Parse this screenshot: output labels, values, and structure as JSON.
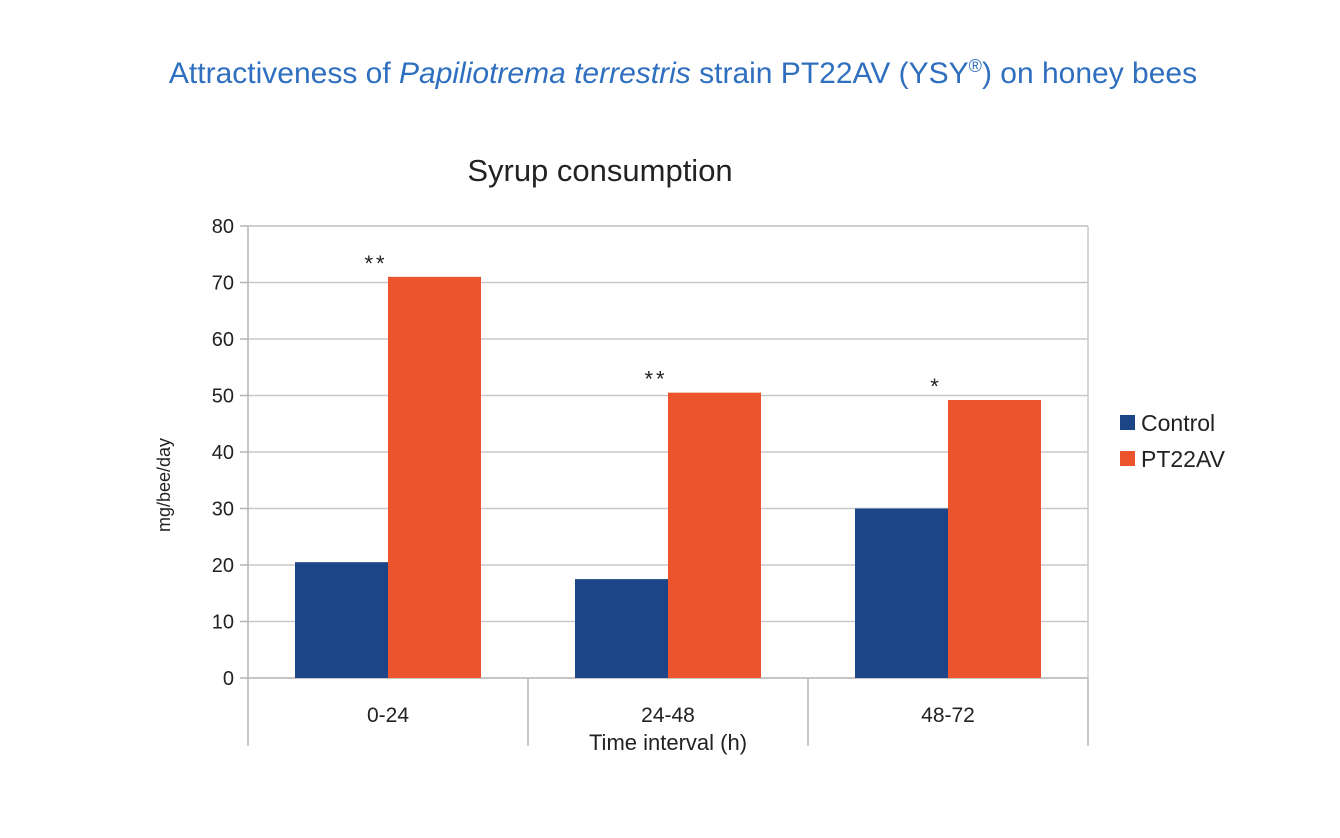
{
  "heading": {
    "prefix": "Attractiveness of ",
    "species": "Papiliotrema terrestris",
    "middle": " strain PT22AV (YSY",
    "registered": "®",
    "suffix": ") on honey bees"
  },
  "colors": {
    "heading": "#2f6fbf",
    "control": "#1c4587",
    "pt22av": "#eb542c",
    "grid": "#c8c8c8",
    "axis": "#b4b4b4",
    "text": "#222222"
  },
  "chart_data": {
    "type": "bar",
    "title": "Syrup consumption",
    "xlabel": "Time interval (h)",
    "ylabel": "mg/bee/day",
    "categories": [
      "0-24",
      "24-48",
      "48-72"
    ],
    "series": [
      {
        "name": "Control",
        "values": [
          20.5,
          17.5,
          30
        ]
      },
      {
        "name": "PT22AV",
        "values": [
          71,
          50.5,
          49.2
        ]
      }
    ],
    "significance": [
      "**",
      "**",
      "*"
    ],
    "ylim": [
      0,
      80
    ],
    "yticks": [
      0,
      10,
      20,
      30,
      40,
      50,
      60,
      70,
      80
    ],
    "grid": true,
    "legend": "right"
  }
}
